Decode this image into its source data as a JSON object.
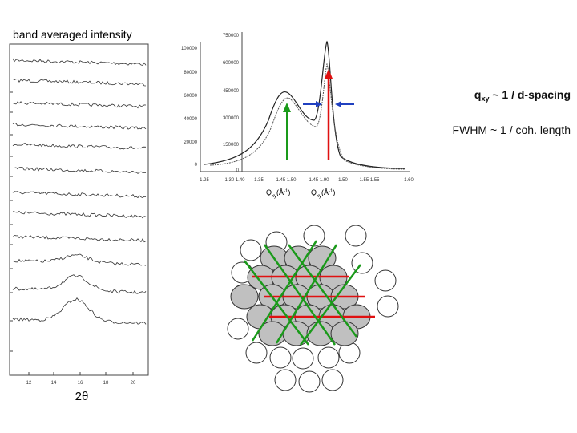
{
  "left_plot": {
    "title": "band averaged intensity",
    "x_ticks": [
      12,
      14,
      16,
      18,
      20
    ],
    "x_label": "2θ"
  },
  "right_plot": {
    "outer_y_ticks": [
      750000,
      600000,
      450000,
      300000,
      150000,
      0
    ],
    "inner_y_ticks": [
      100000,
      80000,
      60000,
      40000,
      20000,
      0
    ],
    "x_ticks": [
      "1.25",
      "1.30 1.40",
      "1.35",
      "1.45 1.50",
      "1.45 1.90",
      "1.50",
      "1.55 1.55",
      "1.60"
    ],
    "x_label_symbol": "Q",
    "x_label_sub": "xy",
    "x_label_unit": "(Å",
    "x_label_exp": "-1",
    "x_label_close": ")"
  },
  "annotations": {
    "q_symbol": "q",
    "q_sub": "xy",
    "q_text": " ~  1 / d-spacing",
    "fwhm_text": "FWHM ~  1 / coh. length"
  }
}
